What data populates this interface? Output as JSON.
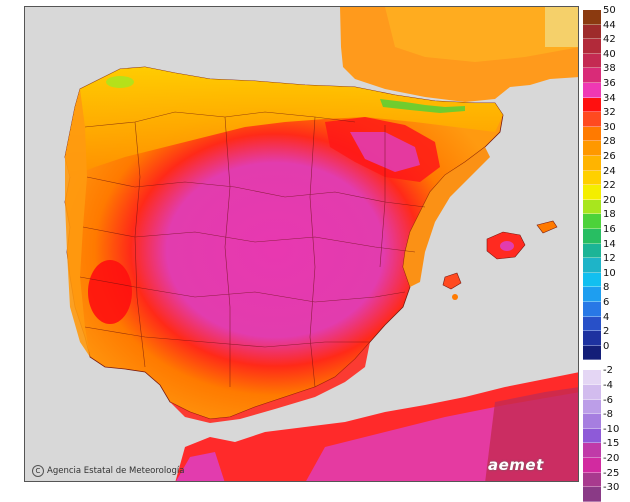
{
  "credit": {
    "text": "Agencia Estatal de Meteorología",
    "symbol": "C"
  },
  "logo": {
    "text": "aemet"
  },
  "legend": {
    "positive": [
      {
        "label": "50",
        "color": "#8b3a10"
      },
      {
        "label": "44",
        "color": "#9e2b2b"
      },
      {
        "label": "42",
        "color": "#b22a3a"
      },
      {
        "label": "40",
        "color": "#c42a52"
      },
      {
        "label": "38",
        "color": "#d92b78"
      },
      {
        "label": "36",
        "color": "#ef38b4"
      },
      {
        "label": "34",
        "color": "#ff1010"
      },
      {
        "label": "32",
        "color": "#ff4a20"
      },
      {
        "label": "30",
        "color": "#ff7a00"
      },
      {
        "label": "28",
        "color": "#ff9800"
      },
      {
        "label": "26",
        "color": "#ffb400"
      },
      {
        "label": "24",
        "color": "#ffd000"
      },
      {
        "label": "22",
        "color": "#f4ee00"
      },
      {
        "label": "20",
        "color": "#a8e61e"
      },
      {
        "label": "18",
        "color": "#4cd23a"
      },
      {
        "label": "16",
        "color": "#28be62"
      },
      {
        "label": "14",
        "color": "#1cb496"
      },
      {
        "label": "12",
        "color": "#1eb4c8"
      },
      {
        "label": "10",
        "color": "#12bff0"
      },
      {
        "label": "8",
        "color": "#1e9ef0"
      },
      {
        "label": "6",
        "color": "#2878e6"
      },
      {
        "label": "4",
        "color": "#2850c8"
      },
      {
        "label": "2",
        "color": "#1e32a0"
      },
      {
        "label": "0",
        "color": "#141e78"
      }
    ],
    "negative": [
      {
        "label": "-2",
        "color": "#e4d6f4"
      },
      {
        "label": "-4",
        "color": "#d2bcee"
      },
      {
        "label": "-6",
        "color": "#bc9ee8"
      },
      {
        "label": "-8",
        "color": "#a67ee0"
      },
      {
        "label": "-10",
        "color": "#8e5ad8"
      },
      {
        "label": "-15",
        "color": "#c03aa8"
      },
      {
        "label": "-20",
        "color": "#d22aa0"
      },
      {
        "label": "-25",
        "color": "#a83a8e"
      },
      {
        "label": "-30",
        "color": "#8a3a86"
      }
    ]
  }
}
